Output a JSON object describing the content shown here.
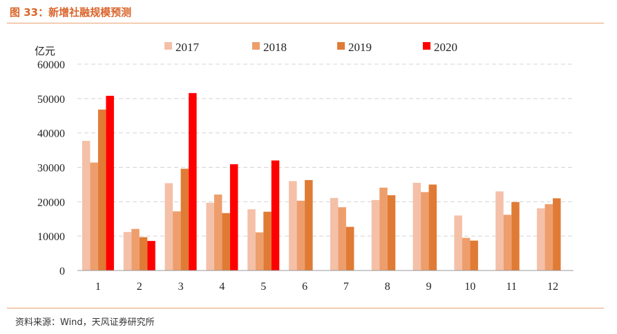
{
  "header": {
    "title": "图 33：新增社融规模预测"
  },
  "footer": {
    "source": "资料来源：Wind，天风证券研究所"
  },
  "chart_data": {
    "type": "bar",
    "title": "新增社融规模预测",
    "ylabel": "亿元",
    "xlabel": "",
    "categories": [
      "1",
      "2",
      "3",
      "4",
      "5",
      "6",
      "7",
      "8",
      "9",
      "10",
      "11",
      "12"
    ],
    "ylim": [
      0,
      60000
    ],
    "yticks": [
      0,
      10000,
      20000,
      30000,
      40000,
      50000,
      60000
    ],
    "grid": true,
    "legend_position": "top",
    "series": [
      {
        "name": "2017",
        "color": "#f4c0a8",
        "values": [
          37700,
          11200,
          25400,
          19700,
          17800,
          26000,
          21100,
          20500,
          25500,
          16000,
          23000,
          18100
        ]
      },
      {
        "name": "2018",
        "color": "#ee9e6c",
        "values": [
          31400,
          12100,
          17200,
          22100,
          11100,
          20300,
          18400,
          24100,
          22800,
          9500,
          16200,
          19300
        ]
      },
      {
        "name": "2019",
        "color": "#e07b35",
        "values": [
          46800,
          9700,
          29600,
          16700,
          17100,
          26300,
          12700,
          21900,
          25000,
          8700,
          19900,
          21000
        ]
      },
      {
        "name": "2020",
        "color": "#ff0000",
        "values": [
          50800,
          8600,
          51600,
          30900,
          32000,
          null,
          null,
          null,
          null,
          null,
          null,
          null
        ]
      }
    ]
  }
}
